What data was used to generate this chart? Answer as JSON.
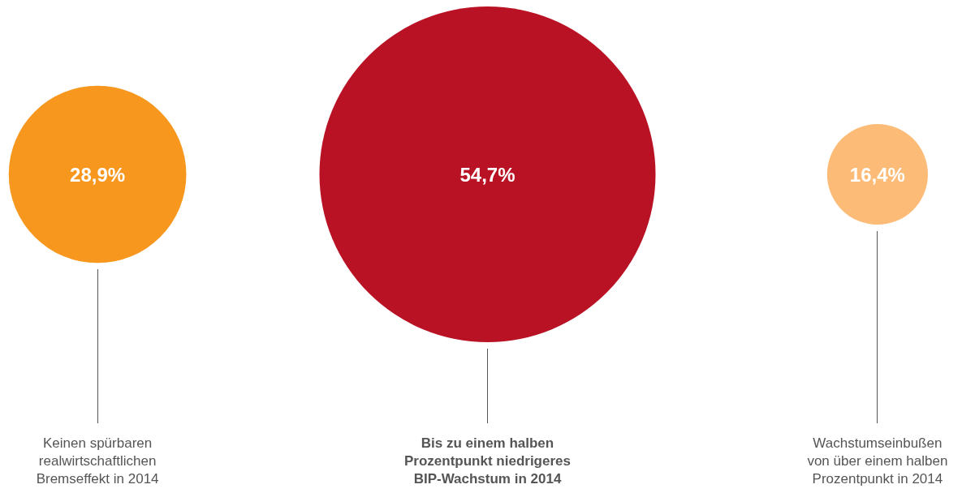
{
  "chart_data": {
    "type": "other",
    "categories": [
      "Keinen spürbaren\nrealwirtschaftlichen\nBremseffekt in 2014",
      "Bis zu einem halben\nProzentpunkt niedrigeres\nBIP-Wachstum in 2014",
      "Wachstumseinbußen\nvon über einem halben\nProzentpunkt in 2014"
    ],
    "values": [
      28.9,
      54.7,
      16.4
    ],
    "colors": [
      "#f7971e",
      "#b91224",
      "#fcbb76"
    ],
    "value_labels": [
      "28,9%",
      "54,7%",
      "16,4%"
    ]
  }
}
